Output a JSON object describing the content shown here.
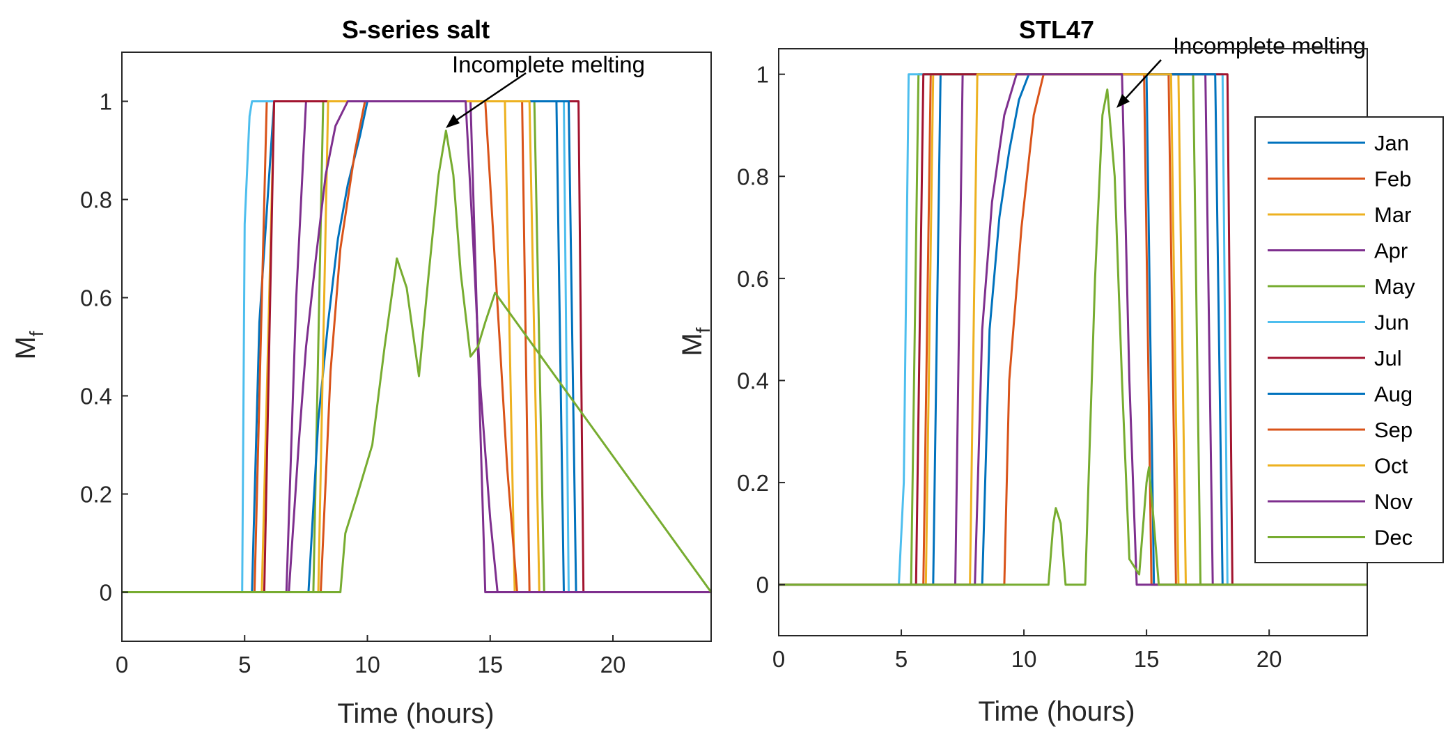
{
  "chart_data": [
    {
      "type": "line",
      "title": "S-series salt",
      "xlabel": "Time (hours)",
      "ylabel": "M",
      "ylabel_sub": "f",
      "xlim": [
        0,
        24
      ],
      "ylim": [
        -0.1,
        1.1
      ],
      "xticks": [
        0,
        5,
        10,
        15,
        20
      ],
      "yticks": [
        0,
        0.2,
        0.4,
        0.6,
        0.8,
        1
      ],
      "xtick_labels": [
        "0",
        "5",
        "10",
        "15",
        "20"
      ],
      "ytick_labels": [
        "0",
        "0.2",
        "0.4",
        "0.6",
        "0.8",
        "1"
      ],
      "annotation": {
        "text": "Incomplete melting",
        "point": [
          13.2,
          0.94
        ]
      },
      "series": [
        {
          "name": "Jan",
          "color": "#0072BD",
          "x": [
            0,
            5.3,
            5.6,
            6.2,
            17.7,
            18.0,
            24
          ],
          "y": [
            0,
            0,
            0.55,
            1,
            1,
            0,
            0
          ]
        },
        {
          "name": "Feb",
          "color": "#D95319",
          "x": [
            0,
            5.4,
            5.9,
            16.3,
            16.6,
            24
          ],
          "y": [
            0,
            0,
            1,
            1,
            0,
            0
          ]
        },
        {
          "name": "Mar",
          "color": "#EDB120",
          "x": [
            0,
            5.7,
            6.2,
            15.6,
            16.0,
            24
          ],
          "y": [
            0,
            0,
            1,
            1,
            0,
            0
          ]
        },
        {
          "name": "Apr",
          "color": "#7E2F8E",
          "x": [
            0,
            6.7,
            7.1,
            7.5,
            14.2,
            14.8,
            24
          ],
          "y": [
            0,
            0,
            0.6,
            1,
            1,
            0,
            0
          ]
        },
        {
          "name": "May",
          "color": "#77AC30",
          "x": [
            0,
            7.8,
            8.2,
            16.8,
            17.2,
            24
          ],
          "y": [
            0,
            0,
            1,
            1,
            0,
            0
          ]
        },
        {
          "name": "Jun",
          "color": "#4DBEEE",
          "x": [
            0,
            4.9,
            5.0,
            5.2,
            5.3,
            18.0,
            18.2,
            24
          ],
          "y": [
            0,
            0,
            0.75,
            0.97,
            1,
            1,
            0,
            0
          ]
        },
        {
          "name": "Jul",
          "color": "#A2142F",
          "x": [
            0,
            5.8,
            6.2,
            18.6,
            18.8,
            24
          ],
          "y": [
            0,
            0,
            1,
            1,
            0,
            0
          ]
        },
        {
          "name": "Aug",
          "color": "#0072BD",
          "x": [
            0,
            7.6,
            8.0,
            8.4,
            8.8,
            9.2,
            9.7,
            10.0,
            18.2,
            18.5,
            24
          ],
          "y": [
            0,
            0,
            0.35,
            0.55,
            0.72,
            0.83,
            0.93,
            1,
            1,
            0,
            0
          ]
        },
        {
          "name": "Sep",
          "color": "#D95319",
          "x": [
            0,
            8.1,
            8.5,
            8.9,
            9.5,
            9.9,
            14.8,
            15.1,
            15.4,
            15.7,
            16.1,
            24
          ],
          "y": [
            0,
            0,
            0.45,
            0.7,
            0.9,
            1,
            1,
            0.75,
            0.5,
            0.25,
            0,
            0
          ]
        },
        {
          "name": "Oct",
          "color": "#EDB120",
          "x": [
            0,
            8.0,
            8.4,
            16.6,
            17.0,
            24
          ],
          "y": [
            0,
            0,
            1,
            1,
            0,
            0
          ]
        },
        {
          "name": "Nov",
          "color": "#7E2F8E",
          "x": [
            0,
            6.8,
            7.2,
            7.5,
            7.9,
            8.3,
            8.7,
            9.2,
            14.0,
            14.3,
            14.6,
            15.0,
            15.3,
            24
          ],
          "y": [
            0,
            0,
            0.3,
            0.5,
            0.68,
            0.85,
            0.95,
            1,
            1,
            0.72,
            0.42,
            0.15,
            0,
            0
          ]
        },
        {
          "name": "Dec",
          "color": "#77AC30",
          "x": [
            0,
            8.9,
            9.1,
            9.6,
            10.2,
            10.7,
            11.2,
            11.6,
            12.1,
            12.5,
            12.9,
            13.2,
            13.5,
            13.8,
            14.2,
            14.5,
            14.8,
            15.2,
            24
          ],
          "y": [
            0,
            0,
            0.12,
            0.2,
            0.3,
            0.5,
            0.68,
            0.62,
            0.44,
            0.65,
            0.85,
            0.94,
            0.85,
            0.65,
            0.48,
            0.5,
            0.55,
            0.61,
            0
          ]
        }
      ]
    },
    {
      "type": "line",
      "title": "STL47",
      "xlabel": "Time (hours)",
      "ylabel": "M",
      "ylabel_sub": "f",
      "xlim": [
        0,
        24
      ],
      "ylim": [
        -0.1,
        1.05
      ],
      "xticks": [
        0,
        5,
        10,
        15,
        20
      ],
      "yticks": [
        0,
        0.2,
        0.4,
        0.6,
        0.8,
        1
      ],
      "xtick_labels": [
        "0",
        "5",
        "10",
        "15",
        "20"
      ],
      "ytick_labels": [
        "0",
        "0.2",
        "0.4",
        "0.6",
        "0.8",
        "1"
      ],
      "annotation": {
        "text": "Incomplete melting",
        "point": [
          13.4,
          0.97
        ]
      },
      "series": [
        {
          "name": "Jan",
          "color": "#0072BD",
          "x": [
            0,
            6.3,
            6.6,
            15.0,
            15.3,
            24
          ],
          "y": [
            0,
            0,
            1,
            1,
            0,
            0
          ]
        },
        {
          "name": "Feb",
          "color": "#D95319",
          "x": [
            0,
            5.9,
            6.2,
            15.9,
            16.2,
            24
          ],
          "y": [
            0,
            0,
            1,
            1,
            0,
            0
          ]
        },
        {
          "name": "Mar",
          "color": "#EDB120",
          "x": [
            0,
            6.0,
            6.3,
            16.3,
            16.6,
            24
          ],
          "y": [
            0,
            0,
            1,
            1,
            0,
            0
          ]
        },
        {
          "name": "Apr",
          "color": "#7E2F8E",
          "x": [
            0,
            7.2,
            7.5,
            17.4,
            17.7,
            24
          ],
          "y": [
            0,
            0,
            1,
            1,
            0,
            0
          ]
        },
        {
          "name": "May",
          "color": "#77AC30",
          "x": [
            0,
            5.4,
            5.7,
            16.9,
            17.2,
            24
          ],
          "y": [
            0,
            0,
            1,
            1,
            0,
            0
          ]
        },
        {
          "name": "Jun",
          "color": "#4DBEEE",
          "x": [
            0,
            4.9,
            5.1,
            5.3,
            18.1,
            18.3,
            24
          ],
          "y": [
            0,
            0,
            0.2,
            1,
            1,
            0,
            0
          ]
        },
        {
          "name": "Jul",
          "color": "#A2142F",
          "x": [
            0,
            5.6,
            5.9,
            18.3,
            18.5,
            24
          ],
          "y": [
            0,
            0,
            1,
            1,
            0,
            0
          ]
        },
        {
          "name": "Aug",
          "color": "#0072BD",
          "x": [
            0,
            8.3,
            8.6,
            9.0,
            9.4,
            9.8,
            10.2,
            17.8,
            18.1,
            24
          ],
          "y": [
            0,
            0,
            0.5,
            0.72,
            0.85,
            0.95,
            1,
            1,
            0,
            0
          ]
        },
        {
          "name": "Sep",
          "color": "#D95319",
          "x": [
            0,
            9.2,
            9.4,
            9.9,
            10.4,
            10.8,
            14.9,
            15.2,
            24
          ],
          "y": [
            0,
            0,
            0.4,
            0.7,
            0.92,
            1,
            1,
            0,
            0
          ]
        },
        {
          "name": "Oct",
          "color": "#EDB120",
          "x": [
            0,
            7.8,
            8.1,
            16.0,
            16.3,
            24
          ],
          "y": [
            0,
            0,
            1,
            1,
            0,
            0
          ]
        },
        {
          "name": "Nov",
          "color": "#7E2F8E",
          "x": [
            0,
            8.0,
            8.3,
            8.7,
            9.2,
            9.7,
            14.0,
            14.3,
            14.6,
            24
          ],
          "y": [
            0,
            0,
            0.5,
            0.75,
            0.92,
            1,
            1,
            0.4,
            0,
            0
          ]
        },
        {
          "name": "Dec",
          "color": "#77AC30",
          "x": [
            0,
            11.0,
            11.2,
            11.3,
            11.5,
            11.7,
            12.5,
            12.9,
            13.2,
            13.4,
            13.7,
            14.0,
            14.3,
            14.7,
            15.0,
            15.1,
            15.3,
            15.5,
            24
          ],
          "y": [
            0,
            0,
            0.12,
            0.15,
            0.12,
            0,
            0,
            0.6,
            0.92,
            0.97,
            0.8,
            0.4,
            0.05,
            0.02,
            0.2,
            0.23,
            0.12,
            0,
            0
          ]
        }
      ]
    }
  ]
}
